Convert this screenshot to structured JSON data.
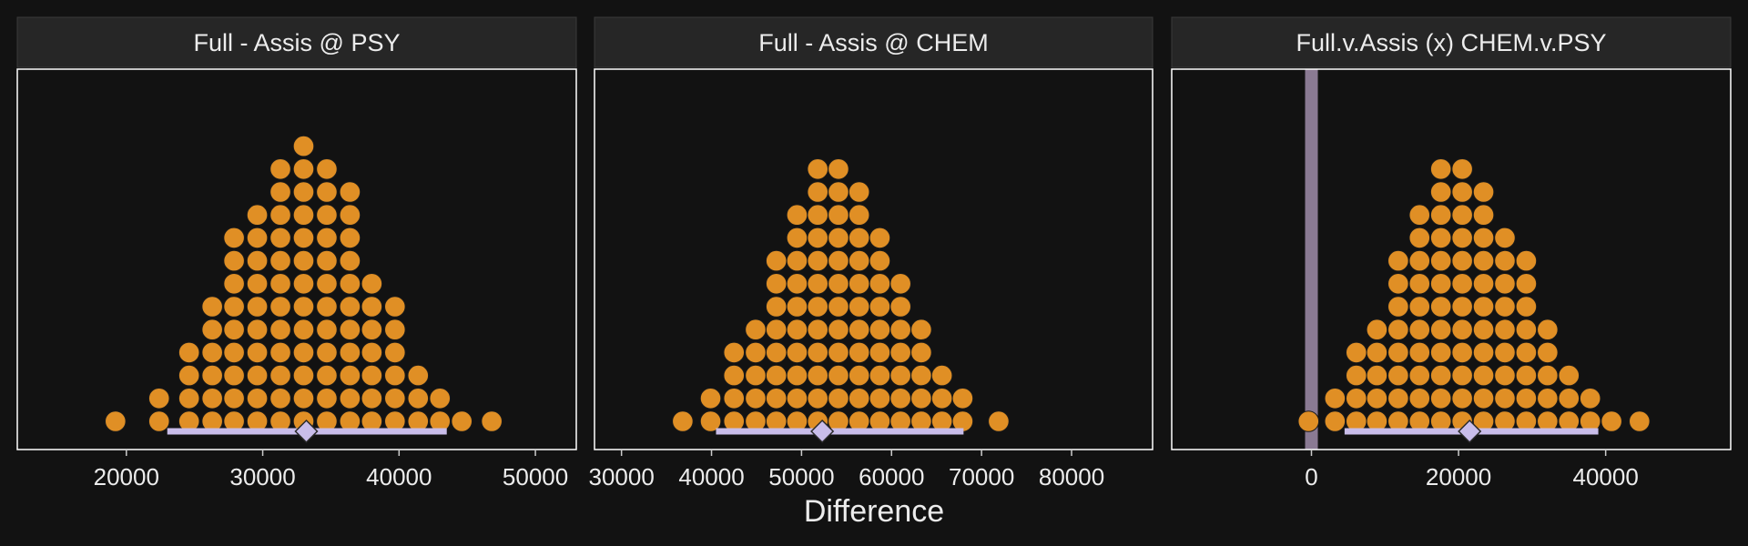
{
  "figure": {
    "xlabel": "Difference",
    "colors": {
      "background": "#121212",
      "panel_background": "#121212",
      "panel_border": "#ffffff",
      "strip_background": "#262626",
      "text": "#ececec",
      "dots": "#e08f25",
      "interval": "#c9bdea",
      "zero_line": "#8a7a93"
    }
  },
  "chart_data": [
    {
      "type": "dotplot",
      "title": "Full - Assis @ PSY",
      "xlim": [
        12000,
        53000
      ],
      "xticks": [
        20000,
        30000,
        40000,
        50000
      ],
      "bin_width": 1650,
      "bins": [
        {
          "x": 19200,
          "count": 1
        },
        {
          "x": 22400,
          "count": 2
        },
        {
          "x": 24600,
          "count": 4
        },
        {
          "x": 26300,
          "count": 6
        },
        {
          "x": 27900,
          "count": 9
        },
        {
          "x": 29600,
          "count": 10
        },
        {
          "x": 31300,
          "count": 12
        },
        {
          "x": 33000,
          "count": 13
        },
        {
          "x": 34700,
          "count": 12
        },
        {
          "x": 36400,
          "count": 11
        },
        {
          "x": 38000,
          "count": 7
        },
        {
          "x": 39700,
          "count": 6
        },
        {
          "x": 41400,
          "count": 3
        },
        {
          "x": 43000,
          "count": 2
        },
        {
          "x": 44600,
          "count": 1
        },
        {
          "x": 46800,
          "count": 1
        }
      ],
      "interval": [
        23000,
        43500
      ],
      "point_estimate": 33200
    },
    {
      "type": "dotplot",
      "title": "Full - Assis @ CHEM",
      "xlim": [
        27000,
        89000
      ],
      "xticks": [
        30000,
        40000,
        50000,
        60000,
        70000,
        80000
      ],
      "bin_width": 2450,
      "bins": [
        {
          "x": 36800,
          "count": 1
        },
        {
          "x": 39900,
          "count": 2
        },
        {
          "x": 42500,
          "count": 4
        },
        {
          "x": 44900,
          "count": 5
        },
        {
          "x": 47200,
          "count": 8
        },
        {
          "x": 49500,
          "count": 10
        },
        {
          "x": 51800,
          "count": 12
        },
        {
          "x": 54100,
          "count": 12
        },
        {
          "x": 56400,
          "count": 11
        },
        {
          "x": 58700,
          "count": 9
        },
        {
          "x": 61000,
          "count": 7
        },
        {
          "x": 63300,
          "count": 5
        },
        {
          "x": 65600,
          "count": 3
        },
        {
          "x": 67900,
          "count": 2
        },
        {
          "x": 71900,
          "count": 1
        }
      ],
      "interval": [
        40500,
        68000
      ],
      "point_estimate": 52300
    },
    {
      "type": "dotplot",
      "title": "Full.v.Assis (x) CHEM.v.PSY",
      "xlim": [
        -19000,
        57000
      ],
      "xticks": [
        0,
        20000,
        40000
      ],
      "bin_width": 2950,
      "zero_line": 0,
      "bins": [
        {
          "x": -400,
          "count": 1
        },
        {
          "x": 3200,
          "count": 2
        },
        {
          "x": 6100,
          "count": 4
        },
        {
          "x": 8900,
          "count": 5
        },
        {
          "x": 11800,
          "count": 8
        },
        {
          "x": 14700,
          "count": 10
        },
        {
          "x": 17600,
          "count": 12
        },
        {
          "x": 20500,
          "count": 12
        },
        {
          "x": 23400,
          "count": 11
        },
        {
          "x": 26300,
          "count": 9
        },
        {
          "x": 29200,
          "count": 8
        },
        {
          "x": 32100,
          "count": 5
        },
        {
          "x": 35000,
          "count": 3
        },
        {
          "x": 37900,
          "count": 2
        },
        {
          "x": 40800,
          "count": 1
        },
        {
          "x": 44600,
          "count": 1
        }
      ],
      "interval": [
        4500,
        39000
      ],
      "point_estimate": 21500
    }
  ]
}
